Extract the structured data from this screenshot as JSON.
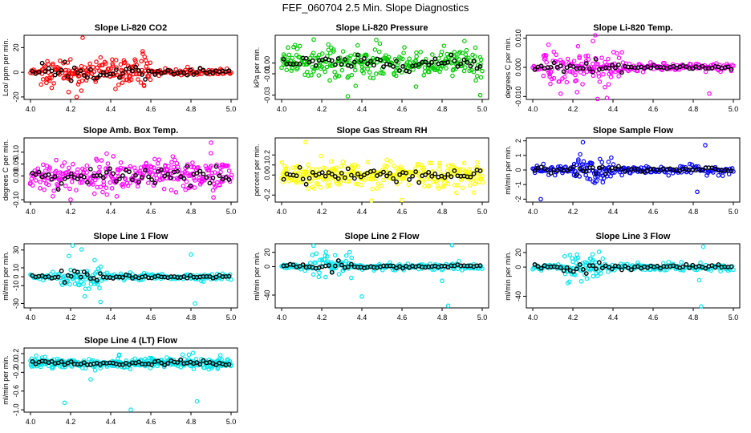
{
  "figure_title": "FEF_060704  2.5 Min. Slope Diagnostics",
  "colors": {
    "co2": "#ff0000",
    "pressure": "#00cc00",
    "temp": "#ff00ff",
    "box_temp": "#ff00ff",
    "rh": "#ffff00",
    "sample_flow": "#0000ff",
    "line_flow": "#00e5ee",
    "overlay": "#000000"
  },
  "chart_data": [
    {
      "type": "scatter",
      "title": "Slope Li-820 CO2",
      "ylabel": "Lco/ ppm per min.",
      "color_key": "co2",
      "x_range": [
        4.0,
        5.0
      ],
      "xticks": [
        "4.0",
        "4.2",
        "4.4",
        "4.6",
        "4.8",
        "5.0"
      ],
      "ylim": [
        -22,
        30
      ],
      "yticks": [
        -20,
        0,
        20
      ],
      "ytick_labels": [
        "-20",
        "0",
        "20"
      ],
      "base_spread": 2.5,
      "active_spread": 8,
      "active_range": [
        4.05,
        4.6
      ],
      "outliers": [
        {
          "x": 4.26,
          "y": 28
        },
        {
          "x": 4.23,
          "y": -20
        },
        {
          "x": 4.56,
          "y": 15
        },
        {
          "x": 4.19,
          "y": -16
        }
      ]
    },
    {
      "type": "scatter",
      "title": "Slope Li-820 Pressure",
      "ylabel": "kPa per min.",
      "color_key": "pressure",
      "x_range": [
        4.0,
        5.0
      ],
      "xticks": [
        "4.0",
        "4.2",
        "4.4",
        "4.6",
        "4.8",
        "5.0"
      ],
      "ylim": [
        -0.034,
        0.026
      ],
      "yticks": [
        -0.03,
        -0.01,
        0.0
      ],
      "ytick_labels": [
        "-0.03",
        "-0.01",
        "0.00"
      ],
      "base_spread": 0.006,
      "active_spread": 0.009,
      "active_range": [
        4.0,
        5.0
      ],
      "outliers": [
        {
          "x": 4.33,
          "y": -0.031
        },
        {
          "x": 4.67,
          "y": -0.022
        },
        {
          "x": 4.99,
          "y": -0.03
        },
        {
          "x": 4.16,
          "y": 0.022
        }
      ]
    },
    {
      "type": "scatter",
      "title": "Slope Li-820 Temp.",
      "ylabel": "degrees C per min.",
      "color_key": "temp",
      "x_range": [
        4.0,
        5.0
      ],
      "xticks": [
        "4.0",
        "4.2",
        "4.4",
        "4.6",
        "4.8",
        "5.0"
      ],
      "ylim": [
        -0.011,
        0.011
      ],
      "yticks": [
        -0.01,
        0.0,
        0.01
      ],
      "ytick_labels": [
        "-0.010",
        "0.000",
        "0.010"
      ],
      "base_spread": 0.0012,
      "active_spread": 0.0045,
      "active_range": [
        4.05,
        4.45
      ],
      "outliers": [
        {
          "x": 4.37,
          "y": -0.0105
        },
        {
          "x": 4.88,
          "y": -0.009
        },
        {
          "x": 4.3,
          "y": 0.009
        }
      ]
    },
    {
      "type": "scatter",
      "title": "Slope Amb. Box Temp.",
      "ylabel": "degrees C per min.",
      "color_key": "box_temp",
      "x_range": [
        4.0,
        5.0
      ],
      "xticks": [
        "4.0",
        "4.2",
        "4.4",
        "4.6",
        "4.8",
        "5.0"
      ],
      "ylim": [
        -0.11,
        0.16
      ],
      "yticks": [
        -0.1,
        0.0,
        0.05,
        0.1
      ],
      "ytick_labels": [
        "-0.10",
        "0.00",
        "0.05",
        "0.10"
      ],
      "base_spread": 0.045,
      "active_spread": 0.05,
      "active_range": [
        4.0,
        5.0
      ],
      "outliers": [
        {
          "x": 4.9,
          "y": 0.14
        },
        {
          "x": 4.2,
          "y": -0.1
        }
      ]
    },
    {
      "type": "scatter",
      "title": "Slope Gas Stream RH",
      "ylabel": "percent per min.",
      "color_key": "rh",
      "x_range": [
        4.0,
        5.0
      ],
      "xticks": [
        "4.0",
        "4.2",
        "4.4",
        "4.6",
        "4.8",
        "5.0"
      ],
      "ylim": [
        -0.27,
        0.37
      ],
      "yticks": [
        -0.2,
        0.0,
        0.1,
        0.2
      ],
      "ytick_labels": [
        "-0.2",
        "0.0",
        "0.1",
        "0.2"
      ],
      "base_spread": 0.07,
      "active_spread": 0.09,
      "active_range": [
        4.0,
        5.0
      ],
      "outliers": [
        {
          "x": 4.12,
          "y": 0.33
        },
        {
          "x": 4.6,
          "y": -0.25
        }
      ]
    },
    {
      "type": "scatter",
      "title": "Slope Sample Flow",
      "ylabel": "ml/min per min.",
      "color_key": "sample_flow",
      "x_range": [
        4.0,
        5.0
      ],
      "xticks": [
        "4.0",
        "4.2",
        "4.4",
        "4.6",
        "4.8",
        "5.0"
      ],
      "ylim": [
        -2.2,
        2.2
      ],
      "yticks": [
        -2,
        -1,
        0,
        1,
        2
      ],
      "ytick_labels": [
        "-2",
        "-1",
        "0",
        "1",
        "2"
      ],
      "base_spread": 0.25,
      "active_spread": 0.6,
      "active_range": [
        4.2,
        4.4
      ],
      "outliers": [
        {
          "x": 4.04,
          "y": -2.0
        },
        {
          "x": 4.25,
          "y": 1.9
        },
        {
          "x": 4.86,
          "y": 1.7
        },
        {
          "x": 4.82,
          "y": -1.5
        }
      ]
    },
    {
      "type": "scatter",
      "title": "Slope Line 1 Flow",
      "ylabel": "ml/min per min.",
      "color_key": "line_flow",
      "x_range": [
        4.0,
        5.0
      ],
      "xticks": [
        "4.0",
        "4.2",
        "4.4",
        "4.6",
        "4.8",
        "5.0"
      ],
      "ylim": [
        -35,
        37
      ],
      "yticks": [
        -30,
        -10,
        0,
        10,
        30
      ],
      "ytick_labels": [
        "-30",
        "-10",
        "0",
        "10",
        "30"
      ],
      "base_spread": 3,
      "active_spread": 10,
      "active_range": [
        4.15,
        4.35
      ],
      "outliers": [
        {
          "x": 4.21,
          "y": 35
        },
        {
          "x": 4.27,
          "y": -22
        },
        {
          "x": 4.82,
          "y": -30
        },
        {
          "x": 4.8,
          "y": 25
        }
      ]
    },
    {
      "type": "scatter",
      "title": "Slope Line 2 Flow",
      "ylabel": "ml/min per min.",
      "color_key": "line_flow",
      "x_range": [
        4.0,
        5.0
      ],
      "xticks": [
        "4.0",
        "4.2",
        "4.4",
        "4.6",
        "4.8",
        "5.0"
      ],
      "ylim": [
        -58,
        32
      ],
      "yticks": [
        -40,
        0,
        20
      ],
      "ytick_labels": [
        "-40",
        "0",
        "20"
      ],
      "base_spread": 4,
      "active_spread": 12,
      "active_range": [
        4.15,
        4.35
      ],
      "outliers": [
        {
          "x": 4.83,
          "y": -55
        },
        {
          "x": 4.4,
          "y": -42
        },
        {
          "x": 4.85,
          "y": 30
        },
        {
          "x": 4.8,
          "y": -20
        }
      ]
    },
    {
      "type": "scatter",
      "title": "Slope Line 3 Flow",
      "ylabel": "ml/min per min.",
      "color_key": "line_flow",
      "x_range": [
        4.0,
        5.0
      ],
      "xticks": [
        "4.0",
        "4.2",
        "4.4",
        "4.6",
        "4.8",
        "5.0"
      ],
      "ylim": [
        -56,
        32
      ],
      "yticks": [
        -40,
        0,
        20
      ],
      "ytick_labels": [
        "-40",
        "0",
        "20"
      ],
      "base_spread": 4,
      "active_spread": 11,
      "active_range": [
        4.15,
        4.35
      ],
      "outliers": [
        {
          "x": 4.84,
          "y": -54
        },
        {
          "x": 4.85,
          "y": 28
        },
        {
          "x": 4.83,
          "y": -18
        }
      ]
    },
    {
      "type": "scatter",
      "title": "Slope Line 4 (LT) Flow",
      "ylabel": "ml/min per min.",
      "color_key": "line_flow",
      "x_range": [
        4.0,
        5.0
      ],
      "xticks": [
        "4.0",
        "4.2",
        "4.4",
        "4.6",
        "4.8",
        "5.0"
      ],
      "ylim": [
        -1.05,
        0.32
      ],
      "yticks": [
        -1.0,
        -0.6,
        -0.2,
        0.0,
        0.2
      ],
      "ytick_labels": [
        "-1.0",
        "-0.6",
        "-0.2",
        "0.0",
        "0.2"
      ],
      "base_spread": 0.05,
      "active_spread": 0.08,
      "active_range": [
        4.0,
        5.0
      ],
      "outliers": [
        {
          "x": 4.17,
          "y": -0.85
        },
        {
          "x": 4.5,
          "y": -1.0
        },
        {
          "x": 4.83,
          "y": -0.82
        },
        {
          "x": 4.3,
          "y": -0.35
        }
      ]
    }
  ]
}
